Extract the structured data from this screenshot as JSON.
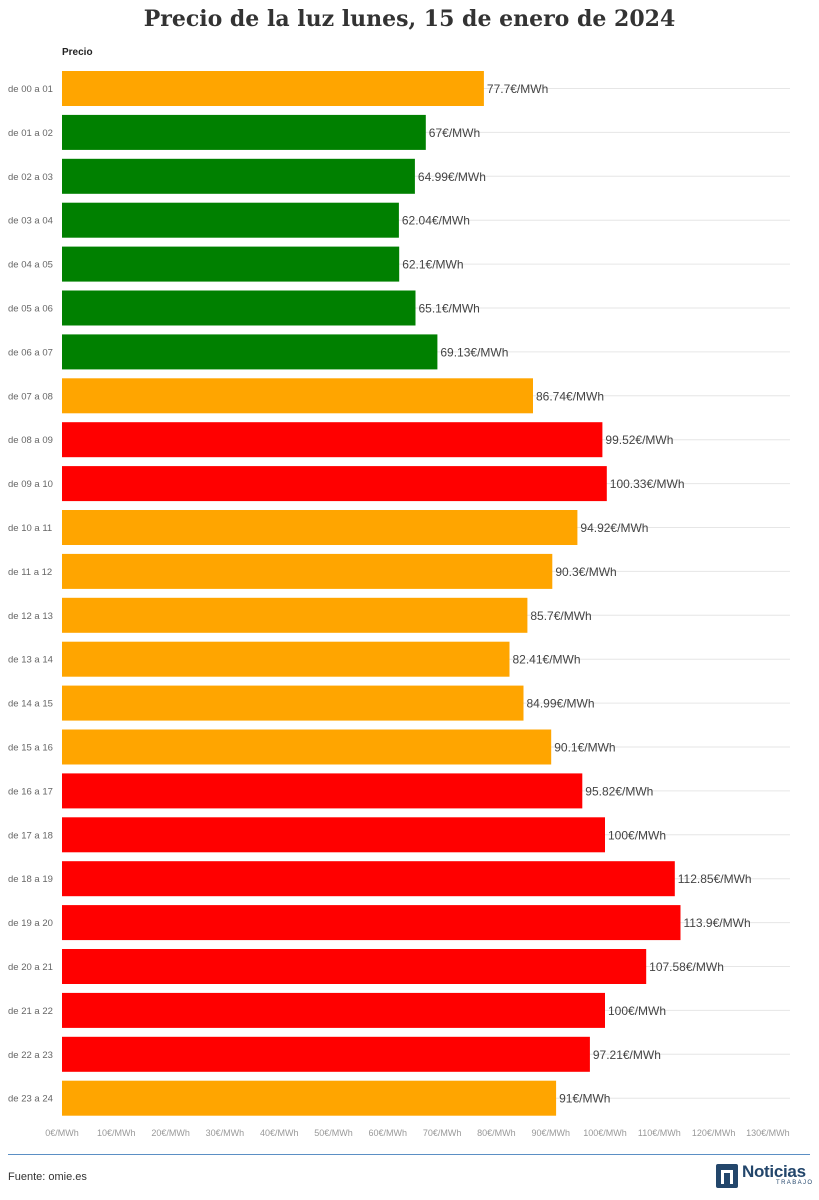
{
  "chart_data": {
    "type": "bar",
    "orientation": "horizontal",
    "title": "Precio de la luz lunes, 15 de enero de 2024",
    "series_label": "Precio",
    "categories": [
      "de 00 a 01",
      "de 01 a 02",
      "de 02 a 03",
      "de 03 a 04",
      "de 04 a 05",
      "de 05 a 06",
      "de 06 a 07",
      "de 07 a 08",
      "de 08 a 09",
      "de 09 a 10",
      "de 10 a 11",
      "de 11 a 12",
      "de 12 a 13",
      "de 13 a 14",
      "de 14 a 15",
      "de 15 a 16",
      "de 16 a 17",
      "de 17 a 18",
      "de 18 a 19",
      "de 19 a 20",
      "de 20 a 21",
      "de 21 a 22",
      "de 22 a 23",
      "de 23 a 24"
    ],
    "values": [
      77.7,
      67,
      64.99,
      62.04,
      62.1,
      65.1,
      69.13,
      86.74,
      99.52,
      100.33,
      94.92,
      90.3,
      85.7,
      82.41,
      84.99,
      90.1,
      95.82,
      100,
      112.85,
      113.9,
      107.58,
      100,
      97.21,
      91
    ],
    "value_labels": [
      "77.7€/MWh",
      "67€/MWh",
      "64.99€/MWh",
      "62.04€/MWh",
      "62.1€/MWh",
      "65.1€/MWh",
      "69.13€/MWh",
      "86.74€/MWh",
      "99.52€/MWh",
      "100.33€/MWh",
      "94.92€/MWh",
      "90.3€/MWh",
      "85.7€/MWh",
      "82.41€/MWh",
      "84.99€/MWh",
      "90.1€/MWh",
      "95.82€/MWh",
      "100€/MWh",
      "112.85€/MWh",
      "113.9€/MWh",
      "107.58€/MWh",
      "100€/MWh",
      "97.21€/MWh",
      "91€/MWh"
    ],
    "bar_colors": [
      "#ffa500",
      "#008000",
      "#008000",
      "#008000",
      "#008000",
      "#008000",
      "#008000",
      "#ffa500",
      "#ff0000",
      "#ff0000",
      "#ffa500",
      "#ffa500",
      "#ffa500",
      "#ffa500",
      "#ffa500",
      "#ffa500",
      "#ff0000",
      "#ff0000",
      "#ff0000",
      "#ff0000",
      "#ff0000",
      "#ff0000",
      "#ff0000",
      "#ffa500"
    ],
    "x_ticks": [
      0,
      10,
      20,
      30,
      40,
      50,
      60,
      70,
      80,
      90,
      100,
      110,
      120,
      130
    ],
    "x_tick_labels": [
      "0€/MWh",
      "10€/MWh",
      "20€/MWh",
      "30€/MWh",
      "40€/MWh",
      "50€/MWh",
      "60€/MWh",
      "70€/MWh",
      "80€/MWh",
      "90€/MWh",
      "100€/MWh",
      "110€/MWh",
      "120€/MWh",
      "130€/MWh"
    ],
    "xlim": [
      0,
      130
    ],
    "grid": true,
    "legend": "none"
  },
  "footer": {
    "source": "Fuente: omie.es",
    "brand_name": "Noticias",
    "brand_sub": "TRABAJO"
  },
  "colors": {
    "low": "#008000",
    "mid": "#ffa500",
    "high": "#ff0000",
    "brand": "#23466b",
    "rule": "#5b8fc4"
  }
}
